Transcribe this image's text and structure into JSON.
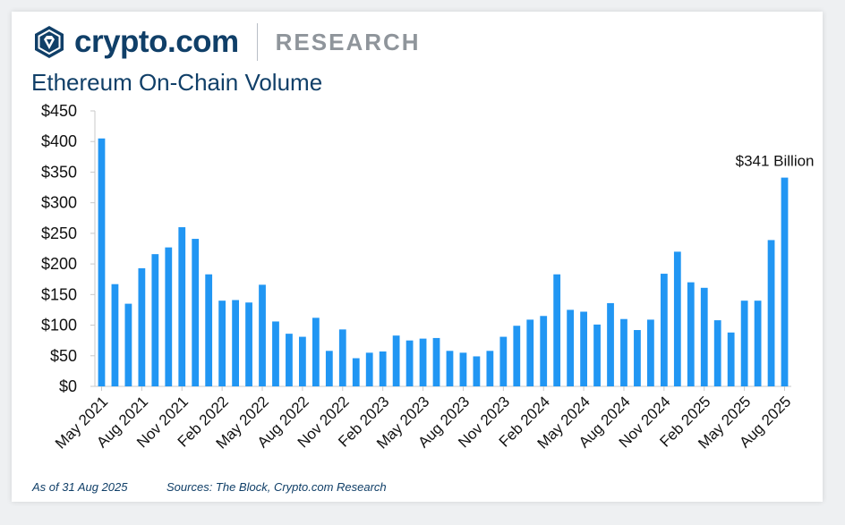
{
  "brand": {
    "name": "crypto.com",
    "section": "RESEARCH",
    "colors": {
      "navy": "#103f68",
      "bar": "#2196f3",
      "grey": "#8f959b"
    }
  },
  "chart_data": {
    "type": "bar",
    "title": "Ethereum On-Chain Volume",
    "xlabel": "",
    "ylabel": "",
    "ylim": [
      0,
      450
    ],
    "yticks": [
      "$0",
      "$50",
      "$100",
      "$150",
      "$200",
      "$250",
      "$300",
      "$350",
      "$400",
      "$450"
    ],
    "categories": [
      "May 2021",
      "Jun 2021",
      "Jul 2021",
      "Aug 2021",
      "Sep 2021",
      "Oct 2021",
      "Nov 2021",
      "Dec 2021",
      "Jan 2022",
      "Feb 2022",
      "Mar 2022",
      "Apr 2022",
      "May 2022",
      "Jun 2022",
      "Jul 2022",
      "Aug 2022",
      "Sep 2022",
      "Oct 2022",
      "Nov 2022",
      "Dec 2022",
      "Jan 2023",
      "Feb 2023",
      "Mar 2023",
      "Apr 2023",
      "May 2023",
      "Jun 2023",
      "Jul 2023",
      "Aug 2023",
      "Sep 2023",
      "Oct 2023",
      "Nov 2023",
      "Dec 2023",
      "Jan 2024",
      "Feb 2024",
      "Mar 2024",
      "Apr 2024",
      "May 2024",
      "Jun 2024",
      "Jul 2024",
      "Aug 2024",
      "Sep 2024",
      "Oct 2024",
      "Nov 2024",
      "Dec 2024",
      "Jan 2025",
      "Feb 2025",
      "Mar 2025",
      "Apr 2025",
      "May 2025",
      "Jun 2025",
      "Jul 2025",
      "Aug 2025"
    ],
    "tick_labels": [
      "May 2021",
      "Aug 2021",
      "Nov 2021",
      "Feb 2022",
      "May 2022",
      "Aug 2022",
      "Nov 2022",
      "Feb 2023",
      "May 2023",
      "Aug 2023",
      "Nov 2023",
      "Feb 2024",
      "May 2024",
      "Aug 2024",
      "Nov 2024",
      "Feb 2025",
      "May 2025",
      "Aug 2025"
    ],
    "values": [
      405,
      167,
      135,
      193,
      216,
      227,
      260,
      241,
      183,
      140,
      141,
      137,
      166,
      106,
      86,
      81,
      112,
      58,
      93,
      46,
      55,
      57,
      83,
      75,
      78,
      79,
      58,
      55,
      49,
      58,
      81,
      99,
      109,
      115,
      183,
      125,
      122,
      101,
      136,
      110,
      92,
      109,
      184,
      220,
      170,
      161,
      108,
      88,
      140,
      140,
      239,
      341
    ],
    "annotation": "$341 Billion"
  },
  "footer": {
    "as_of": "As of 31 Aug 2025",
    "sources": "Sources: The Block, Crypto.com Research"
  }
}
